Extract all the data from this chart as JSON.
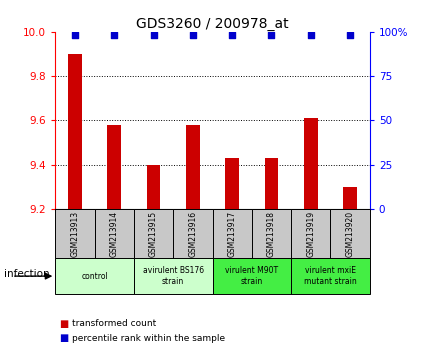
{
  "title": "GDS3260 / 200978_at",
  "samples": [
    "GSM213913",
    "GSM213914",
    "GSM213915",
    "GSM213916",
    "GSM213917",
    "GSM213918",
    "GSM213919",
    "GSM213920"
  ],
  "bar_values": [
    9.9,
    9.58,
    9.4,
    9.58,
    9.43,
    9.43,
    9.61,
    9.3
  ],
  "percentile_values": [
    98,
    98,
    98,
    98,
    98,
    98,
    98,
    98
  ],
  "ymin": 9.2,
  "ymax": 10.0,
  "yticks": [
    9.2,
    9.4,
    9.6,
    9.8,
    10.0
  ],
  "y2ticks": [
    0,
    25,
    50,
    75,
    100
  ],
  "bar_color": "#cc0000",
  "percentile_color": "#0000cc",
  "bg_color": "#ffffff",
  "groups": [
    {
      "label": "control",
      "start": 0,
      "end": 2,
      "color": "#ccffcc"
    },
    {
      "label": "avirulent BS176\nstrain",
      "start": 2,
      "end": 4,
      "color": "#ccffcc"
    },
    {
      "label": "virulent M90T\nstrain",
      "start": 4,
      "end": 6,
      "color": "#44ee44"
    },
    {
      "label": "virulent mxiE\nmutant strain",
      "start": 6,
      "end": 8,
      "color": "#44ee44"
    }
  ],
  "xlabel_infection": "infection",
  "legend_bar": "transformed count",
  "legend_pct": "percentile rank within the sample",
  "sample_bg_color": "#c8c8c8"
}
